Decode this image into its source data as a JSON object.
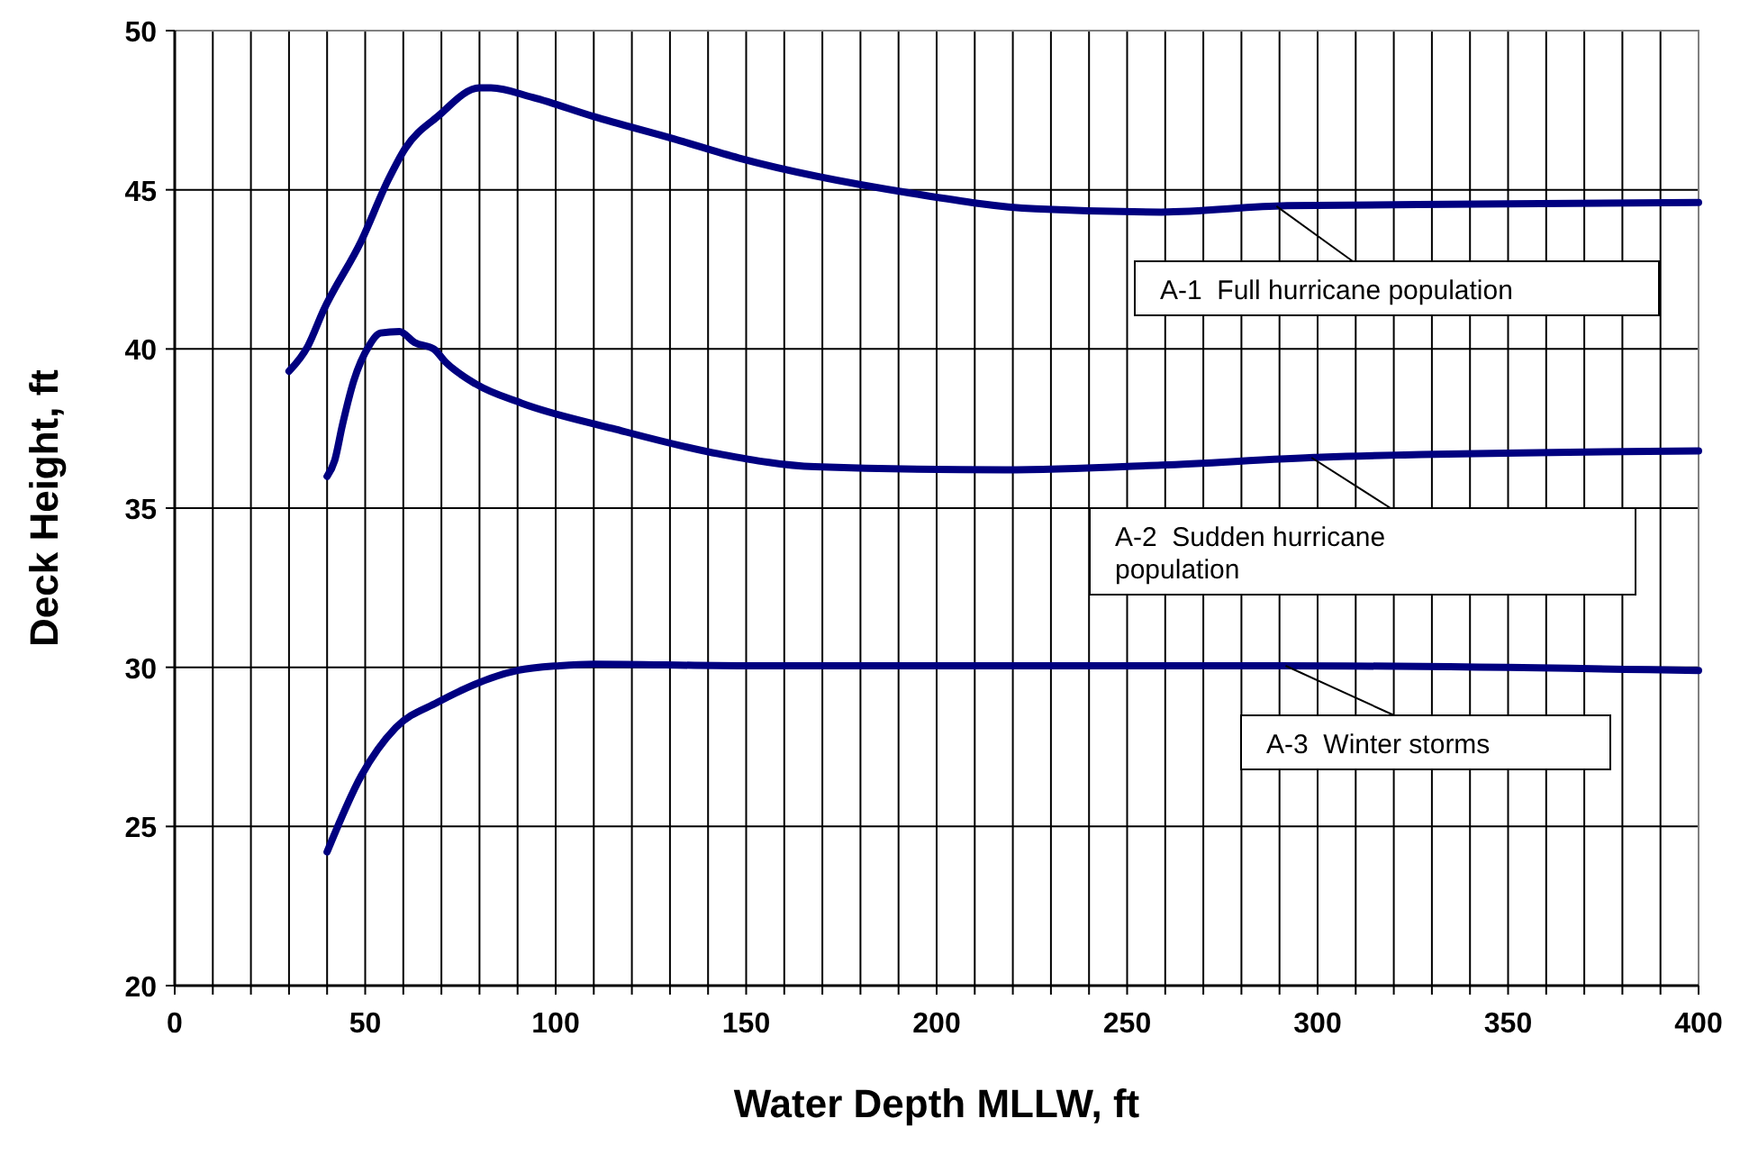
{
  "chart_data": {
    "type": "line",
    "xlabel": "Water Depth MLLW, ft",
    "ylabel": "Deck Height, ft",
    "xlim": [
      0,
      400
    ],
    "ylim": [
      20,
      50
    ],
    "xticks": [
      0,
      {
        "value": 10,
        "label": null
      },
      {
        "value": 20,
        "label": null
      },
      {
        "value": 30,
        "label": null
      },
      {
        "value": 40,
        "label": null
      },
      50,
      {
        "value": 60,
        "label": null
      },
      {
        "value": 70,
        "label": null
      },
      {
        "value": 80,
        "label": null
      },
      {
        "value": 90,
        "label": null
      },
      100,
      {
        "value": 110,
        "label": null
      },
      {
        "value": 120,
        "label": null
      },
      {
        "value": 130,
        "label": null
      },
      {
        "value": 140,
        "label": null
      },
      150,
      {
        "value": 160,
        "label": null
      },
      {
        "value": 170,
        "label": null
      },
      {
        "value": 180,
        "label": null
      },
      {
        "value": 190,
        "label": null
      },
      200,
      {
        "value": 210,
        "label": null
      },
      {
        "value": 220,
        "label": null
      },
      {
        "value": 230,
        "label": null
      },
      {
        "value": 240,
        "label": null
      },
      250,
      {
        "value": 260,
        "label": null
      },
      {
        "value": 270,
        "label": null
      },
      {
        "value": 280,
        "label": null
      },
      {
        "value": 290,
        "label": null
      },
      300,
      {
        "value": 310,
        "label": null
      },
      {
        "value": 320,
        "label": null
      },
      {
        "value": 330,
        "label": null
      },
      {
        "value": 340,
        "label": null
      },
      350,
      {
        "value": 360,
        "label": null
      },
      {
        "value": 370,
        "label": null
      },
      {
        "value": 380,
        "label": null
      },
      {
        "value": 390,
        "label": null
      },
      400
    ],
    "yticks": [
      20,
      25,
      30,
      35,
      40,
      45,
      50
    ],
    "grid": true,
    "marker": "none",
    "line_style": "solid",
    "series": [
      {
        "name": "A-1  Full hurricane population",
        "color": "#000080",
        "x": [
          30,
          35,
          39,
          49,
          56,
          60.5,
          69,
          80,
          83,
          94,
          110,
          131,
          148,
          193,
          226,
          259,
          292,
          342,
          400
        ],
        "values": [
          39.3,
          40.1,
          41.2,
          43.4,
          45.3,
          46.3,
          47.3,
          48.2,
          48.2,
          47.9,
          47.3,
          46.6,
          46.0,
          44.9,
          44.4,
          44.3,
          44.5,
          44.55,
          44.6
        ]
      },
      {
        "name": "A-2  Sudden hurricane population",
        "color": "#000080",
        "x": [
          40,
          42,
          44,
          47,
          51,
          54,
          59,
          63,
          68,
          71,
          79,
          91,
          115,
          143,
          168,
          218,
          259,
          301,
          400
        ],
        "values": [
          36.0,
          36.5,
          37.6,
          39.0,
          40.1,
          40.5,
          40.55,
          40.2,
          40.0,
          39.6,
          38.9,
          38.3,
          37.5,
          36.7,
          36.3,
          36.2,
          36.35,
          36.6,
          36.8
        ]
      },
      {
        "name": "A-3  Winter storms",
        "color": "#000080",
        "x": [
          40,
          49,
          58,
          69,
          90,
          101,
          110,
          148,
          289,
          400
        ],
        "values": [
          24.2,
          26.6,
          28.1,
          28.9,
          29.9,
          30.05,
          30.1,
          30.05,
          30.05,
          29.9
        ]
      }
    ]
  }
}
